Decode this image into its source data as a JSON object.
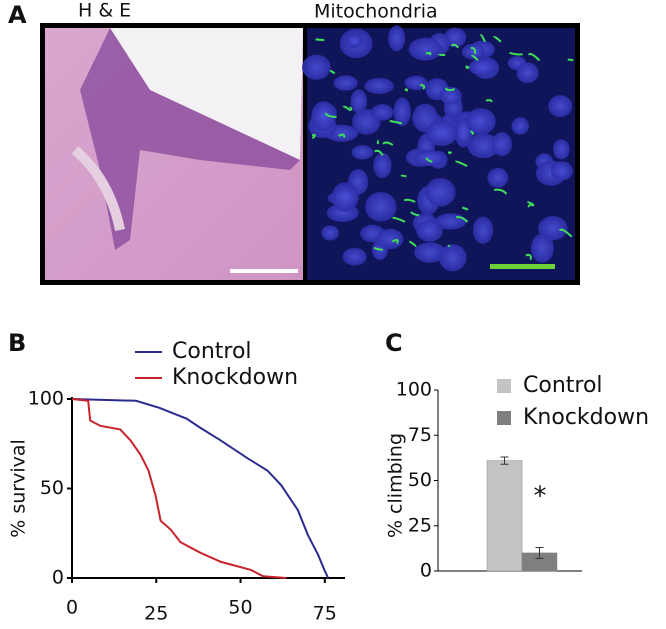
{
  "panel_a": {
    "label": "A",
    "left_title": "H & E",
    "right_title": "Mitochondria"
  },
  "chart_data": [
    {
      "type": "line",
      "panel_label": "B",
      "y_label": "% survival",
      "xlim": [
        0,
        81
      ],
      "xticks": [
        0,
        25,
        50,
        75
      ],
      "ylim": [
        0,
        100
      ],
      "yticks": [
        0,
        50,
        100
      ],
      "series": [
        {
          "name": "Control",
          "color": "#2b2b8f",
          "x": [
            0,
            19,
            26,
            34,
            38,
            44,
            52,
            58,
            62,
            67,
            70,
            73,
            75,
            76
          ],
          "values": [
            100,
            99,
            95,
            89,
            84,
            77,
            67,
            60,
            52,
            38,
            24,
            13,
            4,
            0
          ]
        },
        {
          "name": "Knockdown",
          "color": "#c8232b",
          "x": [
            0,
            4.8,
            5.4,
            8.4,
            14.3,
            17.3,
            20.3,
            22.7,
            24.8,
            26.3,
            29.3,
            32.2,
            38.2,
            44.2,
            53.1,
            56.7,
            63.6
          ],
          "values": [
            100,
            99,
            88,
            85,
            83,
            77,
            69,
            60,
            46,
            32,
            27,
            20,
            14,
            9,
            4.5,
            1,
            0
          ]
        }
      ]
    },
    {
      "type": "bar",
      "panel_label": "C",
      "y_label": "% climbing",
      "annotation": "*",
      "ylim": [
        0,
        100
      ],
      "yticks": [
        0,
        25,
        50,
        75,
        100
      ],
      "series": [
        {
          "name": "Control",
          "color": "#c4c4c4",
          "values": [
            61
          ],
          "errors": [
            2
          ]
        },
        {
          "name": "Knockdown",
          "color": "#7f7f7f",
          "values": [
            10
          ],
          "errors": [
            3
          ]
        }
      ]
    }
  ]
}
